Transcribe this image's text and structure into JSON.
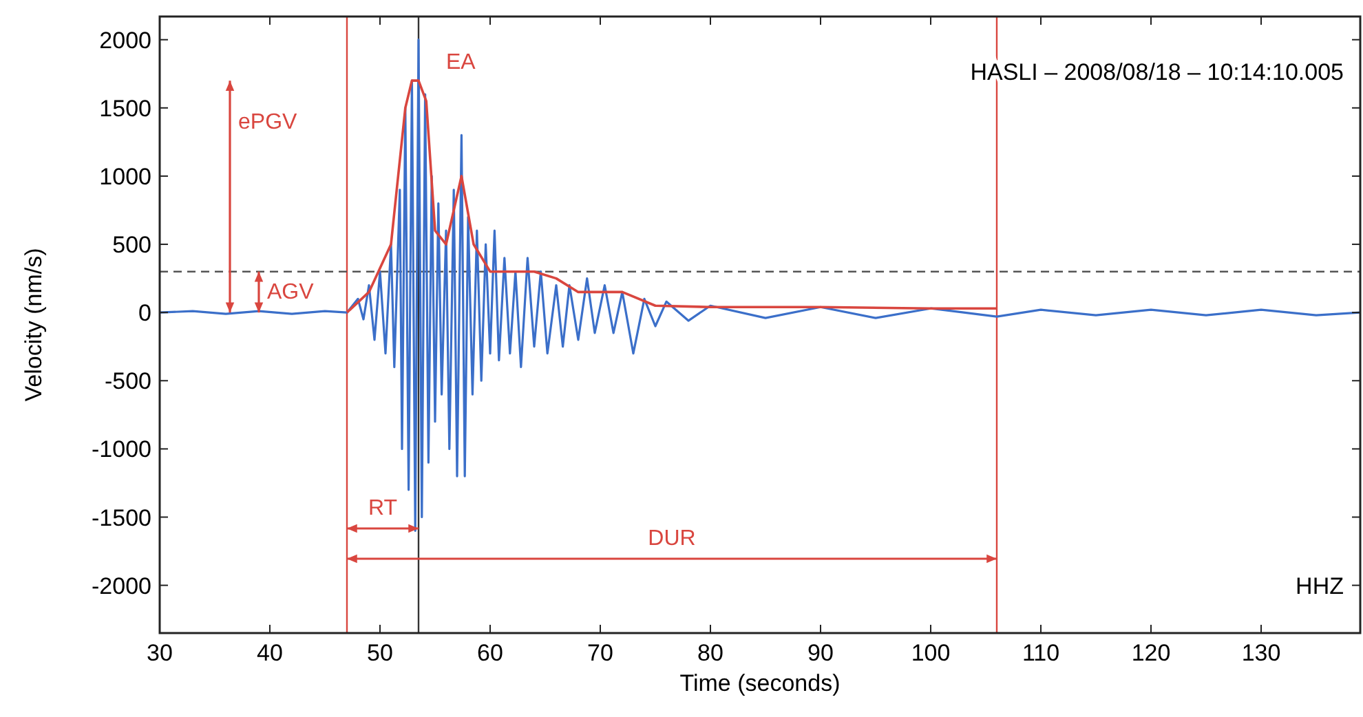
{
  "chart_data": {
    "type": "line",
    "xlabel": "Time (seconds)",
    "ylabel": "Velocity (nm/s)",
    "xlim": [
      30,
      139
    ],
    "xticks": [
      30,
      40,
      50,
      60,
      70,
      80,
      90,
      100,
      110,
      120,
      130
    ],
    "ylim": [
      -2350,
      2170
    ],
    "yticks": [
      -2000,
      -1500,
      -1000,
      -500,
      0,
      500,
      1000,
      1500,
      2000
    ],
    "grid": false,
    "line_style": "solid",
    "series": [
      {
        "color": "#3b6fc9",
        "x": [
          30,
          33,
          36,
          39,
          42,
          45,
          47,
          48,
          48.5,
          49,
          49.5,
          50,
          50.5,
          51,
          51.3,
          51.8,
          52,
          52.3,
          52.6,
          52.9,
          53.2,
          53.5,
          53.8,
          54.1,
          54.4,
          54.7,
          55,
          55.3,
          55.6,
          56,
          56.3,
          56.7,
          57,
          57.4,
          57.7,
          58,
          58.4,
          58.8,
          59.2,
          59.6,
          60,
          60.4,
          60.8,
          61.3,
          61.8,
          62.3,
          62.8,
          63.4,
          64,
          64.6,
          65.2,
          66,
          66.6,
          67.2,
          68,
          68.8,
          69.5,
          70.4,
          71.2,
          72,
          73,
          74,
          75,
          76,
          78,
          80,
          85,
          90,
          95,
          100,
          106,
          110,
          115,
          120,
          125,
          130,
          135,
          139
        ],
        "values": [
          0,
          10,
          -10,
          10,
          -10,
          10,
          0,
          100,
          -50,
          200,
          -200,
          300,
          -300,
          500,
          -400,
          900,
          -1000,
          1500,
          -1300,
          1700,
          -1600,
          2000,
          -1500,
          1600,
          -1100,
          1000,
          -800,
          800,
          -600,
          600,
          -1000,
          900,
          -1200,
          1300,
          -1200,
          700,
          -600,
          600,
          -500,
          500,
          -300,
          600,
          -350,
          400,
          -300,
          300,
          -400,
          400,
          -250,
          300,
          -300,
          200,
          -250,
          200,
          -200,
          250,
          -150,
          200,
          -150,
          150,
          -300,
          100,
          -100,
          80,
          -60,
          50,
          -40,
          40,
          -40,
          30,
          -30,
          20,
          -20,
          20,
          -20,
          20,
          -20,
          0
        ]
      },
      {
        "color": "#d9463f",
        "x": [
          47,
          49,
          51,
          52.3,
          52.9,
          53.5,
          54.2,
          55,
          56,
          57.4,
          58.5,
          60,
          62,
          64,
          66,
          68,
          72,
          75,
          80,
          90,
          100,
          106
        ],
        "values": [
          0,
          150,
          500,
          1500,
          1700,
          1700,
          1550,
          600,
          500,
          1000,
          500,
          300,
          300,
          300,
          250,
          150,
          150,
          50,
          40,
          40,
          30,
          30
        ]
      }
    ],
    "ref_lines": [
      {
        "axis": "x",
        "value": 47,
        "color": "#d9463f"
      },
      {
        "axis": "x",
        "value": 106,
        "color": "#d9463f"
      },
      {
        "axis": "x",
        "value": 53.5,
        "color": "#333333"
      },
      {
        "axis": "y",
        "value": 300,
        "color": "#555555",
        "line_style": "dashed"
      }
    ],
    "annotations": [
      "HASLI – 2008/08/18 – 10:14:10.005",
      "HHZ",
      "ePGV",
      "AGV",
      "EA",
      "RT",
      "DUR"
    ]
  }
}
